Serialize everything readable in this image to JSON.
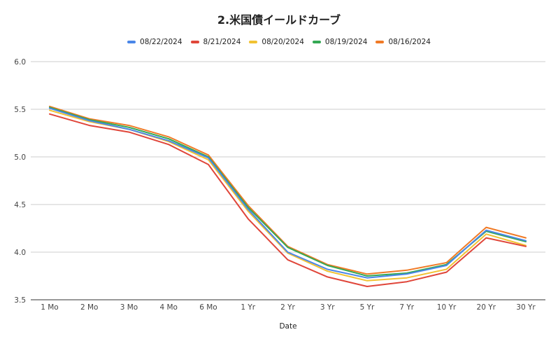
{
  "chart_data": {
    "type": "line",
    "title": "2.米国債イールドカーブ",
    "xlabel": "Date",
    "ylabel": "",
    "ylim": [
      3.5,
      6.0
    ],
    "yticks": [
      "6.0",
      "5.5",
      "5.0",
      "4.5",
      "4.0",
      "3.5"
    ],
    "ytick_values": [
      6.0,
      5.5,
      5.0,
      4.5,
      4.0,
      3.5
    ],
    "grid": true,
    "legend_position": "top",
    "categories": [
      "1 Mo",
      "2 Mo",
      "3 Mo",
      "4 Mo",
      "6 Mo",
      "1 Yr",
      "2 Yr",
      "3 Yr",
      "5 Yr",
      "7 Yr",
      "10 Yr",
      "20 Yr",
      "30 Yr"
    ],
    "series": [
      {
        "name": "08/22/2024",
        "color": "#4a86e8",
        "values": [
          5.51,
          5.38,
          5.29,
          5.17,
          4.99,
          4.45,
          4.0,
          3.82,
          3.73,
          3.77,
          3.86,
          4.23,
          4.12
        ]
      },
      {
        "name": "8/21/2024",
        "color": "#e0463a",
        "values": [
          5.45,
          5.33,
          5.26,
          5.13,
          4.92,
          4.35,
          3.92,
          3.74,
          3.64,
          3.69,
          3.79,
          4.15,
          4.06
        ]
      },
      {
        "name": "08/20/2024",
        "color": "#f1c232",
        "values": [
          5.49,
          5.37,
          5.29,
          5.16,
          4.97,
          4.43,
          3.99,
          3.8,
          3.7,
          3.73,
          3.82,
          4.19,
          4.07
        ]
      },
      {
        "name": "08/19/2024",
        "color": "#34a853",
        "values": [
          5.52,
          5.39,
          5.31,
          5.19,
          5.0,
          4.47,
          4.05,
          3.86,
          3.75,
          3.78,
          3.87,
          4.22,
          4.11
        ]
      },
      {
        "name": "08/16/2024",
        "color": "#f07a26",
        "values": [
          5.53,
          5.4,
          5.33,
          5.21,
          5.02,
          4.49,
          4.06,
          3.87,
          3.77,
          3.81,
          3.89,
          4.26,
          4.15
        ]
      }
    ]
  }
}
